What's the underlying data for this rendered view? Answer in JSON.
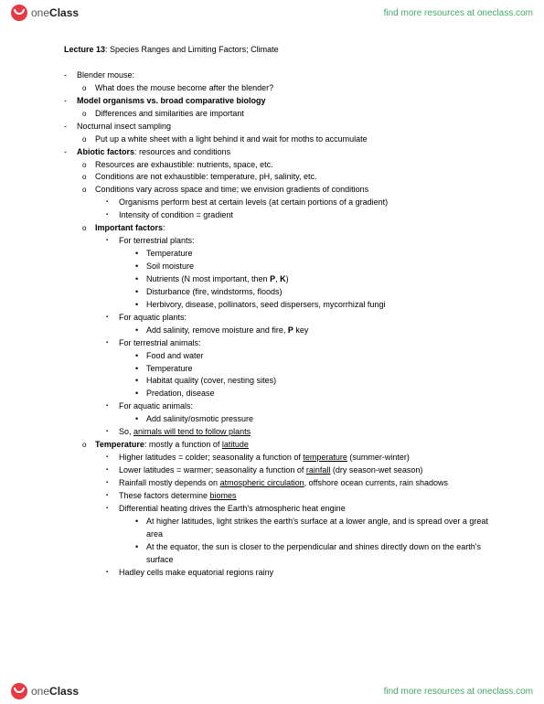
{
  "brand": {
    "pre": "one",
    "bold": "Class"
  },
  "findLink": "find more resources at oneclass.com",
  "title": {
    "prefix": "Lecture 13",
    "rest": ": Species Ranges and Limiting Factors; Climate"
  },
  "content": [
    {
      "lvl": 1,
      "text": "Blender mouse:"
    },
    {
      "lvl": 2,
      "text": "What does the mouse become after the blender?"
    },
    {
      "lvl": 1,
      "html": "<b>Model organisms vs. broad comparative biology</b>"
    },
    {
      "lvl": 2,
      "text": "Differences and similarities are important"
    },
    {
      "lvl": 1,
      "text": "Nocturnal insect sampling"
    },
    {
      "lvl": 2,
      "text": "Put up a white sheet with a light behind it and wait for moths to accumulate"
    },
    {
      "lvl": 1,
      "html": "<b>Abiotic factors</b>: resources and conditions"
    },
    {
      "lvl": 2,
      "text": "Resources are exhaustible: nutrients, space, etc."
    },
    {
      "lvl": 2,
      "text": "Conditions are not exhaustible: temperature, pH, salinity, etc."
    },
    {
      "lvl": 2,
      "text": "Conditions vary across space and time; we envision gradients of conditions"
    },
    {
      "lvl": 3,
      "text": "Organisms perform best at certain levels (at certain portions of a gradient)"
    },
    {
      "lvl": 3,
      "text": "Intensity of condition = gradient"
    },
    {
      "lvl": 2,
      "html": "<b>Important factors</b>:"
    },
    {
      "lvl": 3,
      "text": "For terrestrial plants:"
    },
    {
      "lvl": 4,
      "text": "Temperature"
    },
    {
      "lvl": 4,
      "text": "Soil moisture"
    },
    {
      "lvl": 4,
      "html": "Nutrients (N most important, then <b>P</b>, <b>K</b>)"
    },
    {
      "lvl": 4,
      "text": "Disturbance (fire, windstorms, floods)"
    },
    {
      "lvl": 4,
      "text": "Herbivory, disease, pollinators, seed dispersers, mycorrhizal fungi"
    },
    {
      "lvl": 3,
      "text": "For aquatic plants:"
    },
    {
      "lvl": 4,
      "html": "Add salinity, remove moisture and fire, <b>P</b> key"
    },
    {
      "lvl": 3,
      "text": "For terrestrial animals:"
    },
    {
      "lvl": 4,
      "text": "Food and water"
    },
    {
      "lvl": 4,
      "text": "Temperature"
    },
    {
      "lvl": 4,
      "text": "Habitat quality (cover, nesting sites)"
    },
    {
      "lvl": 4,
      "text": "Predation, disease"
    },
    {
      "lvl": 3,
      "text": "For aquatic animals:"
    },
    {
      "lvl": 4,
      "text": "Add salinity/osmotic pressure"
    },
    {
      "lvl": 3,
      "html": "So, <u>animals will tend to follow plants</u>"
    },
    {
      "lvl": 2,
      "html": "<b>Temperature</b>: mostly a function of <u>latitude</u>"
    },
    {
      "lvl": 3,
      "html": "Higher latitudes = colder; seasonality a function of <u>temperature</u> (summer-winter)"
    },
    {
      "lvl": 3,
      "html": "Lower latitudes = warmer; seasonality a function of <u>rainfall</u> (dry season-wet season)"
    },
    {
      "lvl": 3,
      "html": "Rainfall mostly depends on <u>atmospheric circulation</u>, offshore ocean currents, rain shadows"
    },
    {
      "lvl": 3,
      "html": "These factors determine <u>biomes</u>"
    },
    {
      "lvl": 3,
      "text": "Differential heating drives the Earth's atmospheric heat engine"
    },
    {
      "lvl": 4,
      "text": "At higher latitudes, light strikes the earth's surface at a lower angle, and is spread over a great area"
    },
    {
      "lvl": 4,
      "text": "At the equator, the sun is closer to the perpendicular and shines directly down on the earth's surface"
    },
    {
      "lvl": 3,
      "text": "Hadley cells make equatorial regions rainy"
    }
  ],
  "colors": {
    "bg": "#ffffff",
    "text": "#000000",
    "link": "#44aa66",
    "logoRed": "#e63946"
  },
  "fonts": {
    "body_pt": 9,
    "title_pt": 9,
    "brand_pt": 12,
    "link_pt": 10
  }
}
